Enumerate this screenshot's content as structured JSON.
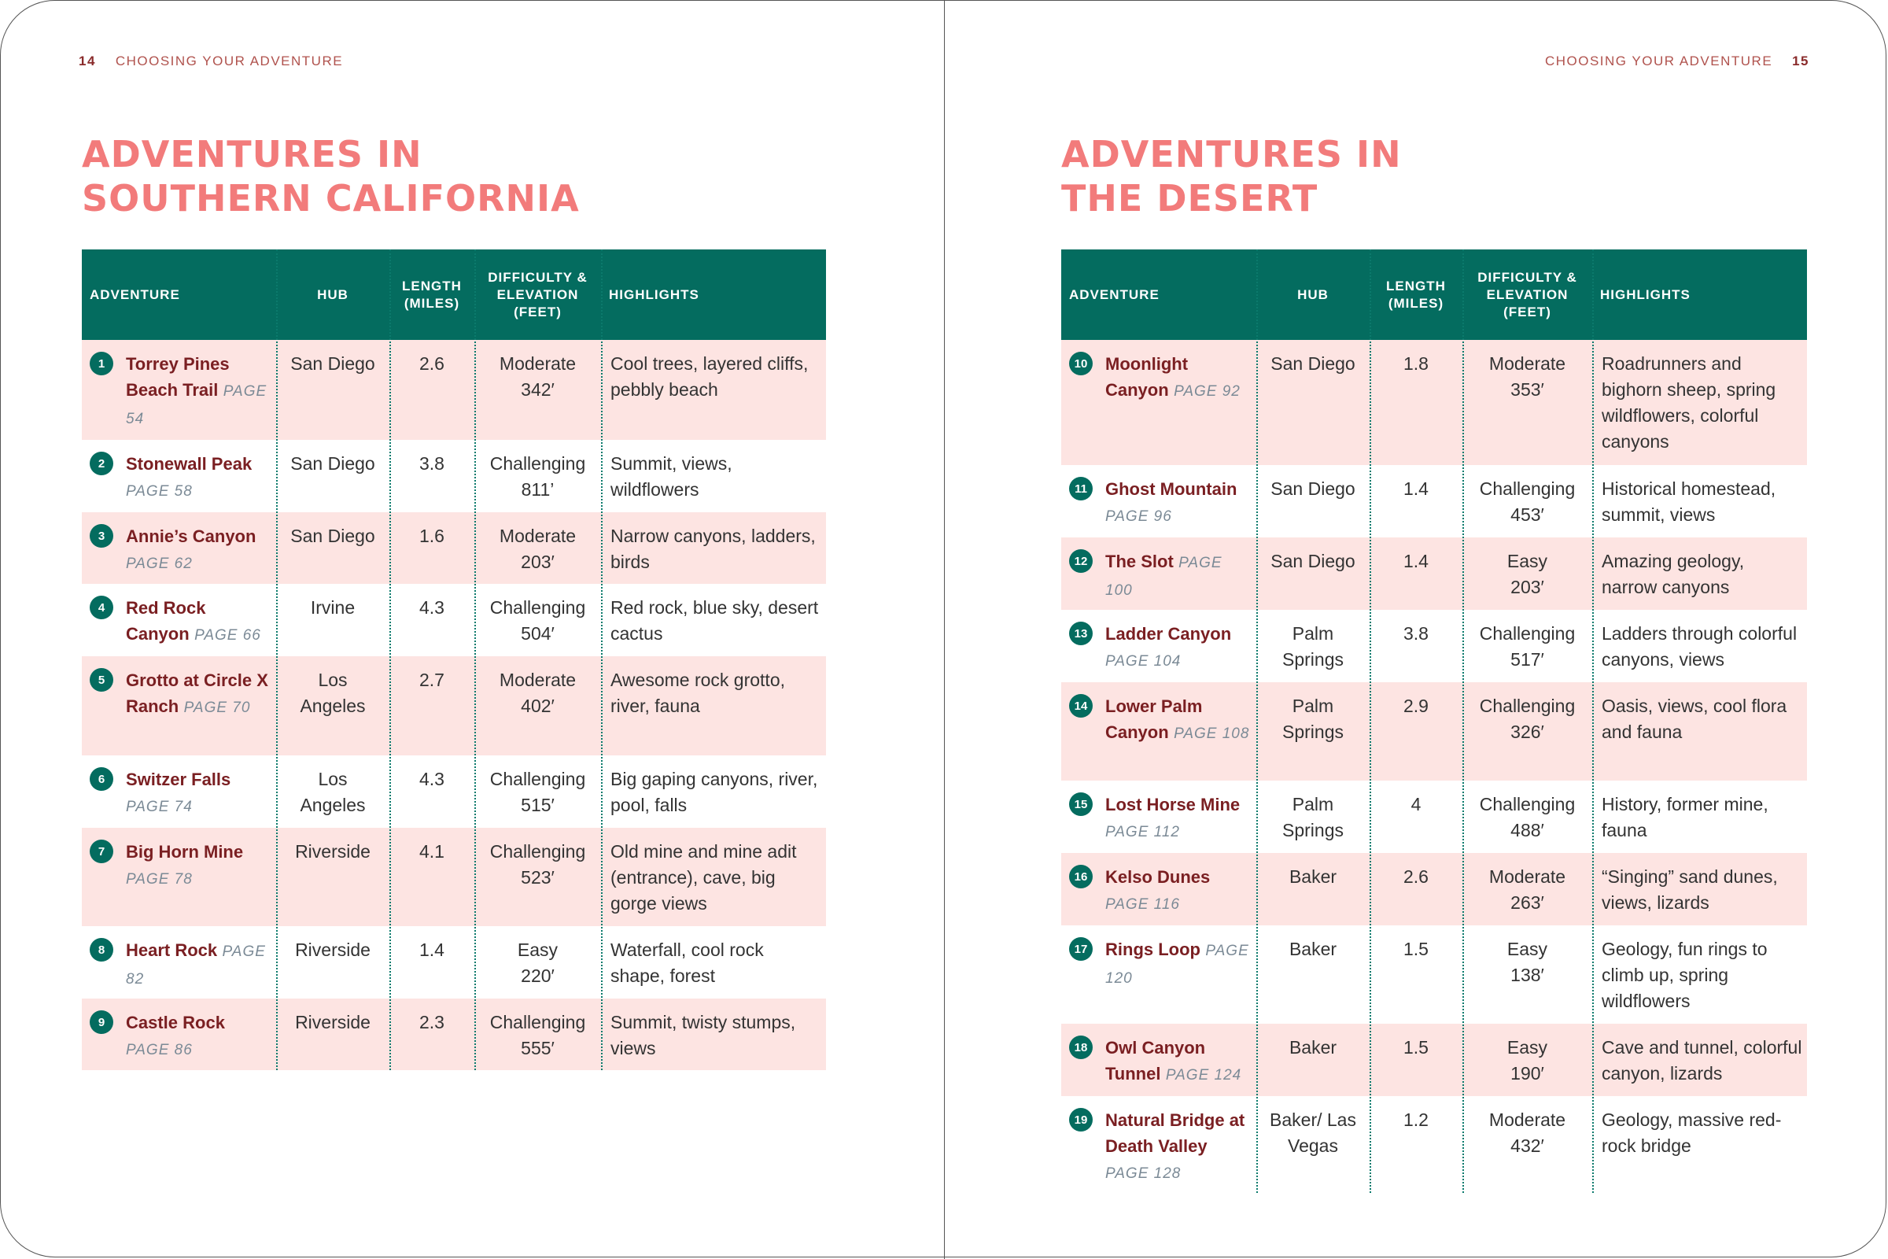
{
  "left": {
    "page_number": "14",
    "running_head": "CHOOSING YOUR ADVENTURE",
    "title_line1": "ADVENTURES IN",
    "title_line2": "SOUTHERN CALIFORNIA",
    "rows": [
      {
        "num": "1",
        "name": "Torrey Pines Beach Trail",
        "page": "PAGE 54",
        "hub": "San Diego",
        "length": "2.6",
        "difficulty": "Moderate",
        "elevation": "342′",
        "highlights": "Cool trees, layered cliffs, pebbly beach"
      },
      {
        "num": "2",
        "name": "Stonewall Peak",
        "page": "PAGE 58",
        "hub": "San Diego",
        "length": "3.8",
        "difficulty": "Challenging",
        "elevation": "811’",
        "highlights": "Summit, views, wildflowers"
      },
      {
        "num": "3",
        "name": "Annie’s Canyon",
        "page": "PAGE 62",
        "hub": "San Diego",
        "length": "1.6",
        "difficulty": "Moderate",
        "elevation": "203′",
        "highlights": "Narrow canyons, ladders, birds"
      },
      {
        "num": "4",
        "name": "Red Rock Canyon",
        "page": "PAGE 66",
        "hub": "Irvine",
        "length": "4.3",
        "difficulty": "Challenging",
        "elevation": "504′",
        "highlights": "Red rock, blue sky, desert cactus"
      },
      {
        "num": "5",
        "name": "Grotto at Circle X Ranch",
        "page": "PAGE 70",
        "hub": "Los Angeles",
        "length": "2.7",
        "difficulty": "Moderate",
        "elevation": "402′",
        "highlights": "Awesome rock grotto, river, fauna"
      },
      {
        "num": "6",
        "name": "Switzer Falls",
        "page": "PAGE 74",
        "hub": "Los Angeles",
        "length": "4.3",
        "difficulty": "Challenging",
        "elevation": "515′",
        "highlights": "Big gaping canyons, river, pool, falls"
      },
      {
        "num": "7",
        "name": "Big Horn Mine",
        "page": "PAGE 78",
        "hub": "Riverside",
        "length": "4.1",
        "difficulty": "Challenging",
        "elevation": "523′",
        "highlights": "Old mine and mine adit (entrance), cave, big gorge views"
      },
      {
        "num": "8",
        "name": "Heart Rock",
        "page": "PAGE 82",
        "hub": "Riverside",
        "length": "1.4",
        "difficulty": "Easy",
        "elevation": "220′",
        "highlights": "Waterfall, cool rock shape, forest"
      },
      {
        "num": "9",
        "name": "Castle Rock",
        "page": "PAGE 86",
        "hub": "Riverside",
        "length": "2.3",
        "difficulty": "Challenging",
        "elevation": "555′",
        "highlights": "Summit, twisty stumps, views"
      }
    ]
  },
  "right": {
    "page_number": "15",
    "running_head": "CHOOSING YOUR ADVENTURE",
    "title_line1": "ADVENTURES IN",
    "title_line2": "THE DESERT",
    "rows": [
      {
        "num": "10",
        "name": "Moonlight Canyon",
        "page": "PAGE 92",
        "hub": "San Diego",
        "length": "1.8",
        "difficulty": "Moderate",
        "elevation": "353′",
        "highlights": "Roadrunners and bighorn sheep, spring wildflowers, colorful canyons"
      },
      {
        "num": "11",
        "name": "Ghost Mountain",
        "page": "PAGE 96",
        "hub": "San Diego",
        "length": "1.4",
        "difficulty": "Challenging",
        "elevation": "453′",
        "highlights": "Historical homestead, summit, views"
      },
      {
        "num": "12",
        "name": "The Slot",
        "page": "PAGE 100",
        "hub": "San Diego",
        "length": "1.4",
        "difficulty": "Easy",
        "elevation": "203′",
        "highlights": "Amazing geology, narrow canyons"
      },
      {
        "num": "13",
        "name": "Ladder Canyon",
        "page": "PAGE 104",
        "hub": "Palm Springs",
        "length": "3.8",
        "difficulty": "Challenging",
        "elevation": "517′",
        "highlights": "Ladders through colorful canyons, views"
      },
      {
        "num": "14",
        "name": "Lower Palm Canyon",
        "page": "PAGE 108",
        "hub": "Palm Springs",
        "length": "2.9",
        "difficulty": "Challenging",
        "elevation": "326′",
        "highlights": "Oasis, views, cool flora and fauna"
      },
      {
        "num": "15",
        "name": "Lost Horse Mine",
        "page": "PAGE 112",
        "hub": "Palm Springs",
        "length": "4",
        "difficulty": "Challenging",
        "elevation": "488′",
        "highlights": "History, former mine, fauna"
      },
      {
        "num": "16",
        "name": "Kelso Dunes",
        "page": "PAGE 116",
        "hub": "Baker",
        "length": "2.6",
        "difficulty": "Moderate",
        "elevation": "263′",
        "highlights": "“Singing” sand dunes, views, lizards"
      },
      {
        "num": "17",
        "name": "Rings Loop",
        "page": "PAGE 120",
        "hub": "Baker",
        "length": "1.5",
        "difficulty": "Easy",
        "elevation": "138′",
        "highlights": "Geology, fun rings to climb up, spring wildflowers"
      },
      {
        "num": "18",
        "name": "Owl Canyon Tunnel",
        "page": "PAGE 124",
        "hub": "Baker",
        "length": "1.5",
        "difficulty": "Easy",
        "elevation": "190′",
        "highlights": "Cave and tunnel, colorful canyon, lizards"
      },
      {
        "num": "19",
        "name": "Natural Bridge at Death Valley",
        "page": "PAGE 128",
        "hub": "Baker/ Las Vegas",
        "length": "1.2",
        "difficulty": "Moderate",
        "elevation": "432′",
        "highlights": "Geology, massive red-rock bridge"
      }
    ]
  },
  "columns": {
    "adventure": "ADVENTURE",
    "hub": "HUB",
    "length": "LENGTH (MILES)",
    "difficulty": "DIFFICULTY & ELEVATION (FEET)",
    "highlights": "HIGHLIGHTS"
  },
  "colors": {
    "header_green": "#046c5f",
    "row_pink": "#fde4e2",
    "title_salmon": "#f27b7b",
    "name_maroon": "#7a1f22"
  }
}
